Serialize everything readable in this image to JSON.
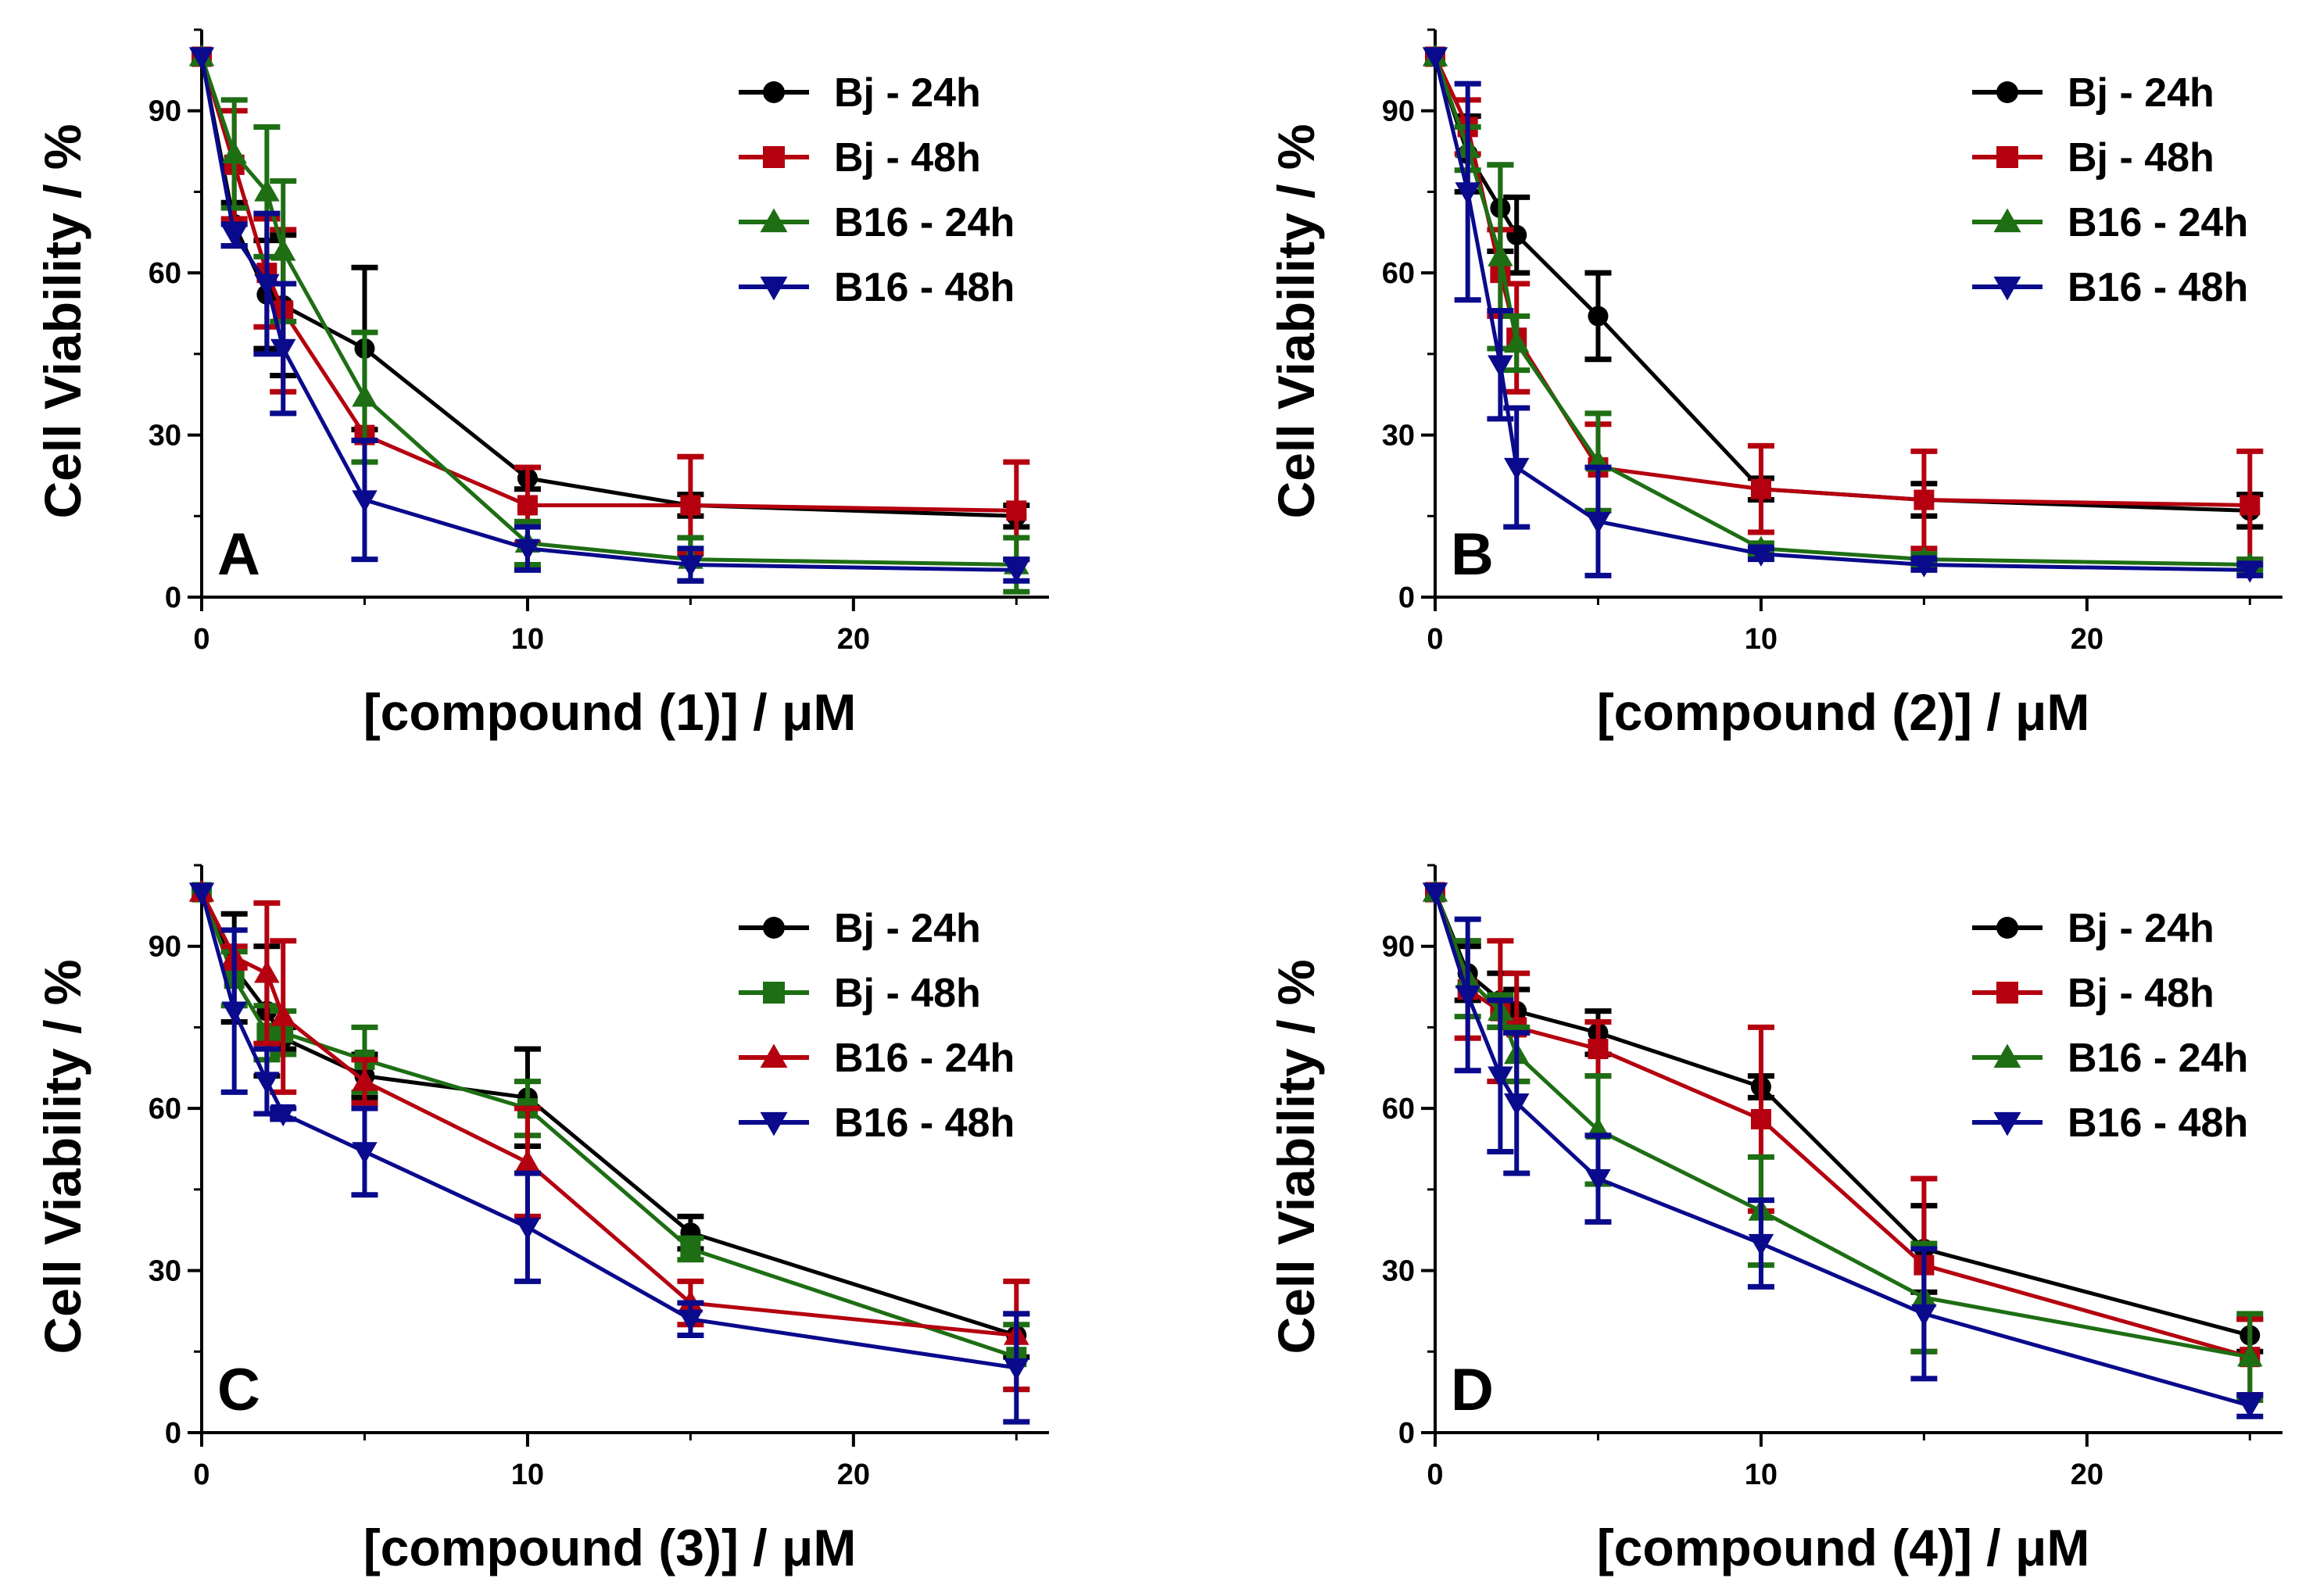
{
  "colors": {
    "black": "#000000",
    "red": "#b4000f",
    "green": "#1e6e14",
    "blue": "#0a0a8c"
  },
  "chart_data": [
    {
      "type": "line",
      "panel_label": "A",
      "xlabel": "[compound (1)]  /  μM",
      "ylabel": "Cell Viability  /  %",
      "xlim": [
        0,
        26
      ],
      "ylim": [
        0,
        105
      ],
      "x_ticks": [
        "0",
        "10",
        "20"
      ],
      "y_ticks": [
        "0",
        "30",
        "60",
        "90"
      ],
      "x": [
        0,
        1,
        2,
        2.5,
        5,
        10,
        15,
        25
      ],
      "series": [
        {
          "name": "Bj - 24h",
          "color": "black",
          "marker": "circle",
          "values": [
            100,
            69,
            56,
            54,
            46,
            22,
            17,
            15
          ],
          "errors": [
            0,
            4,
            10,
            13,
            15,
            2,
            2,
            2
          ]
        },
        {
          "name": "Bj - 48h",
          "color": "red",
          "marker": "square",
          "values": [
            100,
            80,
            60,
            53,
            30,
            17,
            17,
            16
          ],
          "errors": [
            0,
            10,
            10,
            15,
            0,
            7,
            9,
            9
          ]
        },
        {
          "name": "B16 - 24h",
          "color": "green",
          "marker": "triangle-up",
          "values": [
            100,
            82,
            75,
            64,
            37,
            10,
            7,
            6
          ],
          "errors": [
            0,
            10,
            12,
            13,
            12,
            4,
            4,
            5
          ]
        },
        {
          "name": "B16 - 48h",
          "color": "blue",
          "marker": "triangle-down",
          "values": [
            100,
            67,
            58,
            46,
            18,
            9,
            6,
            5
          ],
          "errors": [
            0,
            2,
            13,
            12,
            11,
            4,
            3,
            2
          ]
        }
      ]
    },
    {
      "type": "line",
      "panel_label": "B",
      "xlabel": "[compound (2)]  /  μM",
      "ylabel": "Cell Viability  /  %",
      "xlim": [
        0,
        26
      ],
      "ylim": [
        0,
        105
      ],
      "x_ticks": [
        "0",
        "10",
        "20"
      ],
      "y_ticks": [
        "0",
        "30",
        "60",
        "90"
      ],
      "x": [
        0,
        1,
        2,
        2.5,
        5,
        10,
        15,
        25
      ],
      "series": [
        {
          "name": "Bj - 24h",
          "color": "black",
          "marker": "circle",
          "values": [
            100,
            82,
            72,
            67,
            52,
            20,
            18,
            16
          ],
          "errors": [
            0,
            7,
            8,
            7,
            8,
            2,
            3,
            3
          ]
        },
        {
          "name": "Bj - 48h",
          "color": "red",
          "marker": "square",
          "values": [
            100,
            87,
            60,
            48,
            24,
            20,
            18,
            17
          ],
          "errors": [
            0,
            5,
            8,
            10,
            8,
            8,
            9,
            10
          ]
        },
        {
          "name": "B16 - 24h",
          "color": "green",
          "marker": "triangle-up",
          "values": [
            100,
            83,
            63,
            47,
            25,
            9,
            7,
            6
          ],
          "errors": [
            0,
            4,
            17,
            5,
            9,
            1,
            1,
            1
          ]
        },
        {
          "name": "B16 - 48h",
          "color": "blue",
          "marker": "triangle-down",
          "values": [
            100,
            75,
            43,
            24,
            14,
            8,
            6,
            5
          ],
          "errors": [
            0,
            20,
            10,
            11,
            10,
            1,
            1,
            1
          ]
        }
      ]
    },
    {
      "type": "line",
      "panel_label": "C",
      "xlabel": "[compound (3)]  /  μM",
      "ylabel": "Cell Viability  /  %",
      "xlim": [
        0,
        26
      ],
      "ylim": [
        0,
        105
      ],
      "x_ticks": [
        "0",
        "10",
        "20"
      ],
      "y_ticks": [
        "0",
        "30",
        "60",
        "90"
      ],
      "x": [
        0,
        1,
        2,
        2.5,
        5,
        10,
        15,
        25
      ],
      "series": [
        {
          "name": "Bj - 24h",
          "color": "black",
          "marker": "circle",
          "values": [
            100,
            86,
            78,
            73,
            66,
            62,
            37,
            18
          ],
          "errors": [
            0,
            10,
            12,
            2,
            4,
            9,
            3,
            4
          ]
        },
        {
          "name": "Bj - 48h",
          "color": "green",
          "marker": "square",
          "values": [
            100,
            84,
            74,
            74,
            69,
            60,
            34,
            14
          ],
          "errors": [
            0,
            5,
            5,
            4,
            6,
            5,
            2,
            6
          ]
        },
        {
          "name": "B16 - 24h",
          "color": "red",
          "marker": "triangle-up",
          "values": [
            100,
            88,
            85,
            77,
            65,
            50,
            24,
            18
          ],
          "errors": [
            0,
            2,
            13,
            14,
            4,
            10,
            4,
            10
          ]
        },
        {
          "name": "B16 - 48h",
          "color": "blue",
          "marker": "triangle-down",
          "values": [
            100,
            78,
            65,
            59,
            52,
            38,
            21,
            12
          ],
          "errors": [
            0,
            15,
            6,
            1,
            8,
            10,
            3,
            10
          ]
        }
      ]
    },
    {
      "type": "line",
      "panel_label": "D",
      "xlabel": "[compound (4)]  /  μM",
      "ylabel": "Cell Viability  /  %",
      "xlim": [
        0,
        26
      ],
      "ylim": [
        0,
        105
      ],
      "x_ticks": [
        "0",
        "10",
        "20"
      ],
      "y_ticks": [
        "0",
        "30",
        "60",
        "90"
      ],
      "x": [
        0,
        1,
        2,
        2.5,
        5,
        10,
        15,
        25
      ],
      "series": [
        {
          "name": "Bj - 24h",
          "color": "black",
          "marker": "circle",
          "values": [
            100,
            85,
            80,
            78,
            74,
            64,
            34,
            18
          ],
          "errors": [
            0,
            5,
            5,
            4,
            4,
            2,
            8,
            3
          ]
        },
        {
          "name": "Bj - 48h",
          "color": "red",
          "marker": "square",
          "values": [
            100,
            82,
            78,
            75,
            71,
            58,
            31,
            14
          ],
          "errors": [
            0,
            9,
            13,
            10,
            5,
            17,
            16,
            7
          ]
        },
        {
          "name": "B16 - 24h",
          "color": "green",
          "marker": "triangle-up",
          "values": [
            100,
            84,
            78,
            70,
            56,
            41,
            25,
            14
          ],
          "errors": [
            0,
            7,
            3,
            5,
            10,
            10,
            10,
            8
          ]
        },
        {
          "name": "B16 - 48h",
          "color": "blue",
          "marker": "triangle-down",
          "values": [
            100,
            81,
            66,
            61,
            47,
            35,
            22,
            5
          ],
          "errors": [
            0,
            14,
            14,
            13,
            8,
            8,
            12,
            2
          ]
        }
      ]
    }
  ]
}
